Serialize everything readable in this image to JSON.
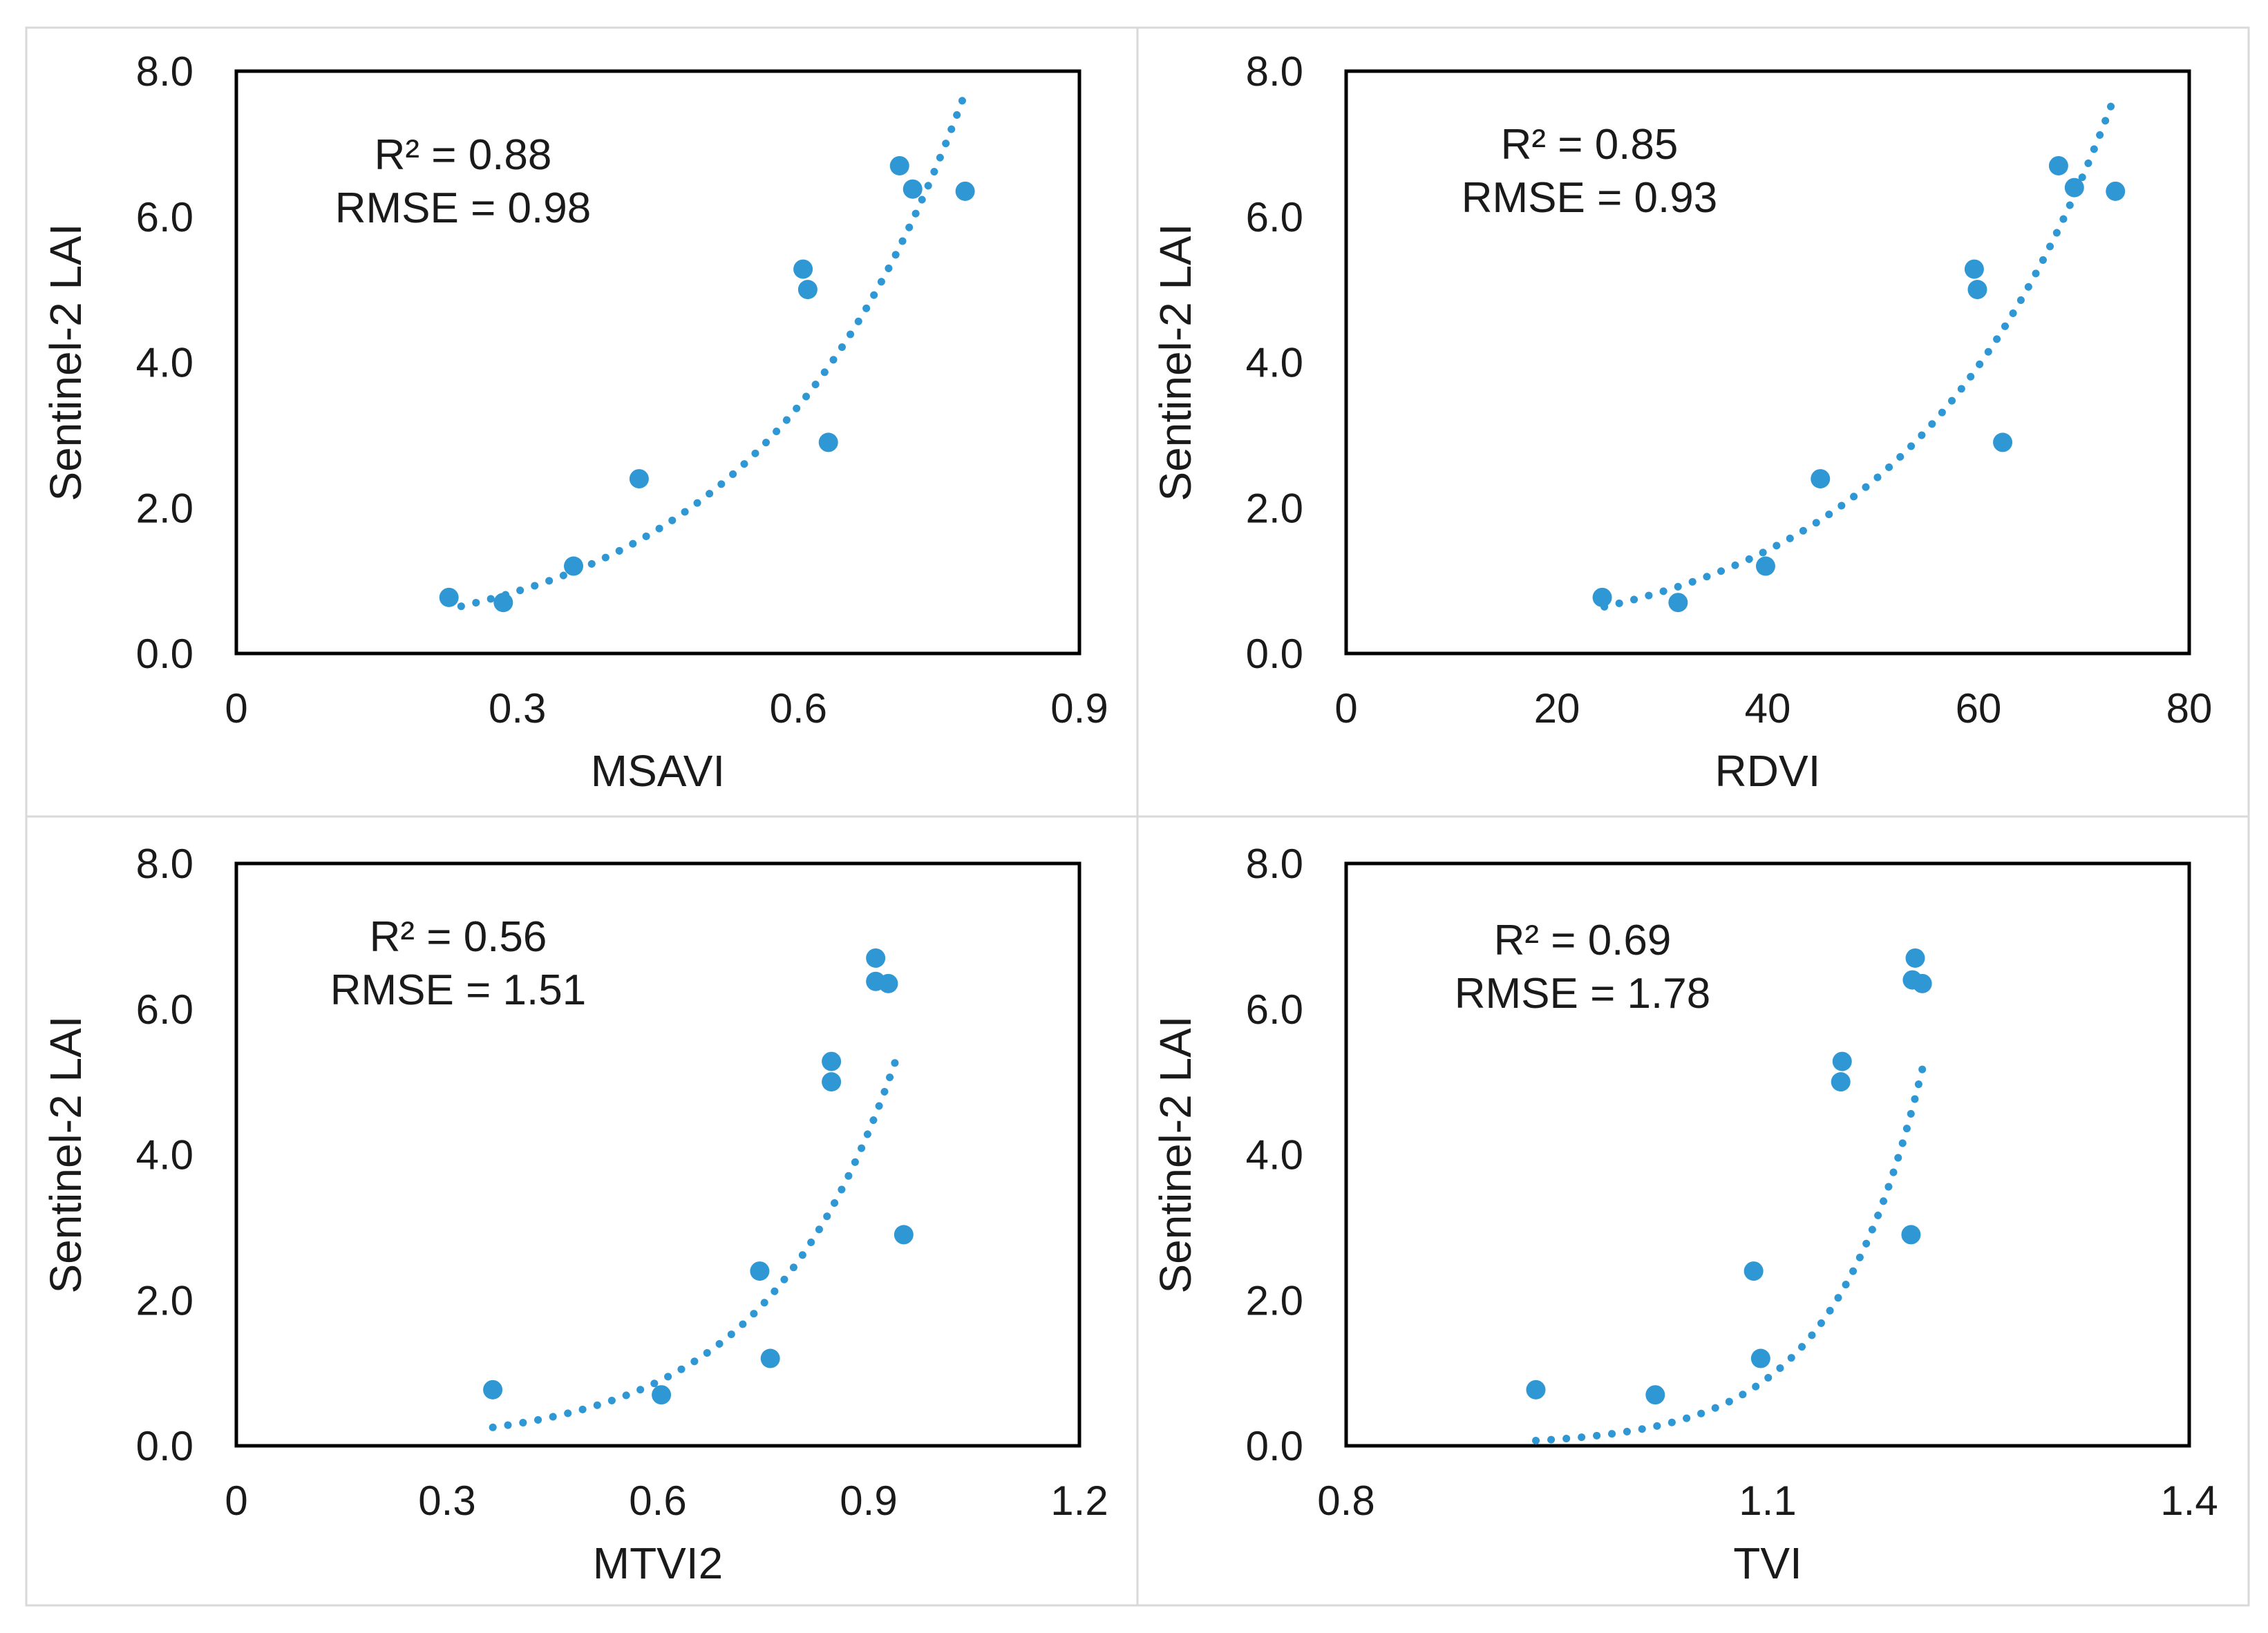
{
  "figure": {
    "colors": {
      "marker": "#2e97d4",
      "trend": "#2e97d4",
      "frame": "#000000",
      "panel_border": "#d9d9d9"
    }
  },
  "chart_data": [
    {
      "type": "scatter",
      "title": "",
      "xlabel": "MSAVI",
      "ylabel": "Sentinel-2 LAI",
      "xlim": [
        0,
        0.9
      ],
      "ylim": [
        0,
        8
      ],
      "xticks": [
        "0",
        "0.3",
        "0.6",
        "0.9"
      ],
      "yticks": [
        "0.0",
        "2.0",
        "4.0",
        "6.0",
        "8.0"
      ],
      "r2_label": "R² = 0.88",
      "rmse_label": "RMSE = 0.98",
      "points": [
        {
          "x": 0.227,
          "y": 0.77
        },
        {
          "x": 0.285,
          "y": 0.7
        },
        {
          "x": 0.36,
          "y": 1.2
        },
        {
          "x": 0.43,
          "y": 2.4
        },
        {
          "x": 0.605,
          "y": 5.28
        },
        {
          "x": 0.61,
          "y": 5.0
        },
        {
          "x": 0.632,
          "y": 2.9
        },
        {
          "x": 0.708,
          "y": 6.7
        },
        {
          "x": 0.722,
          "y": 6.38
        },
        {
          "x": 0.778,
          "y": 6.35
        }
      ],
      "trend": {
        "type": "exponential",
        "a": 0.215,
        "b": 4.6,
        "x_range": [
          0.24,
          0.775
        ]
      }
    },
    {
      "type": "scatter",
      "title": "",
      "xlabel": "RDVI",
      "ylabel": "Sentinel-2 LAI",
      "xlim": [
        0,
        80
      ],
      "ylim": [
        0,
        8
      ],
      "xticks": [
        "0",
        "20",
        "40",
        "60",
        "80"
      ],
      "yticks": [
        "0.0",
        "2.0",
        "4.0",
        "6.0",
        "8.0"
      ],
      "r2_label": "R² = 0.85",
      "rmse_label": "RMSE = 0.93",
      "points": [
        {
          "x": 24.3,
          "y": 0.77
        },
        {
          "x": 31.5,
          "y": 0.7
        },
        {
          "x": 39.8,
          "y": 1.2
        },
        {
          "x": 45.0,
          "y": 2.4
        },
        {
          "x": 59.6,
          "y": 5.28
        },
        {
          "x": 59.9,
          "y": 5.0
        },
        {
          "x": 62.3,
          "y": 2.9
        },
        {
          "x": 67.6,
          "y": 6.7
        },
        {
          "x": 69.1,
          "y": 6.4
        },
        {
          "x": 73.0,
          "y": 6.35
        }
      ],
      "trend": {
        "type": "exponential",
        "a": 0.183,
        "b": 0.0512,
        "x_range": [
          24.5,
          73.0
        ]
      }
    },
    {
      "type": "scatter",
      "title": "",
      "xlabel": "MTVI2",
      "ylabel": "Sentinel-2 LAI",
      "xlim": [
        0,
        1.2
      ],
      "ylim": [
        0,
        8
      ],
      "xticks": [
        "0",
        "0.3",
        "0.6",
        "0.9",
        "1.2"
      ],
      "yticks": [
        "0.0",
        "2.0",
        "4.0",
        "6.0",
        "8.0"
      ],
      "r2_label": "R² = 0.56",
      "rmse_label": "RMSE = 1.51",
      "points": [
        {
          "x": 0.365,
          "y": 0.77
        },
        {
          "x": 0.605,
          "y": 0.7
        },
        {
          "x": 0.76,
          "y": 1.2
        },
        {
          "x": 0.745,
          "y": 2.4
        },
        {
          "x": 0.847,
          "y": 5.28
        },
        {
          "x": 0.847,
          "y": 5.0
        },
        {
          "x": 0.95,
          "y": 2.9
        },
        {
          "x": 0.91,
          "y": 6.7
        },
        {
          "x": 0.91,
          "y": 6.38
        },
        {
          "x": 0.928,
          "y": 6.35
        }
      ],
      "trend": {
        "type": "exponential",
        "a": 0.0366,
        "b": 5.3,
        "x_range": [
          0.365,
          0.94
        ]
      }
    },
    {
      "type": "scatter",
      "title": "",
      "xlabel": "TVI",
      "ylabel": "Sentinel-2 LAI",
      "xlim": [
        0.8,
        1.4
      ],
      "ylim": [
        0,
        8
      ],
      "xticks": [
        "0.8",
        "1.1",
        "1.4"
      ],
      "yticks": [
        "0.0",
        "2.0",
        "4.0",
        "6.0",
        "8.0"
      ],
      "r2_label": "R² = 0.69",
      "rmse_label": "RMSE = 1.78",
      "points": [
        {
          "x": 0.935,
          "y": 0.77
        },
        {
          "x": 1.02,
          "y": 0.7
        },
        {
          "x": 1.095,
          "y": 1.2
        },
        {
          "x": 1.09,
          "y": 2.4
        },
        {
          "x": 1.153,
          "y": 5.28
        },
        {
          "x": 1.152,
          "y": 5.0
        },
        {
          "x": 1.202,
          "y": 2.9
        },
        {
          "x": 1.205,
          "y": 6.7
        },
        {
          "x": 1.203,
          "y": 6.4
        },
        {
          "x": 1.21,
          "y": 6.35
        }
      ],
      "trend": {
        "type": "exponential",
        "a": 3.28e-08,
        "b": 15.6,
        "x_range": [
          0.935,
          1.21
        ]
      }
    }
  ]
}
